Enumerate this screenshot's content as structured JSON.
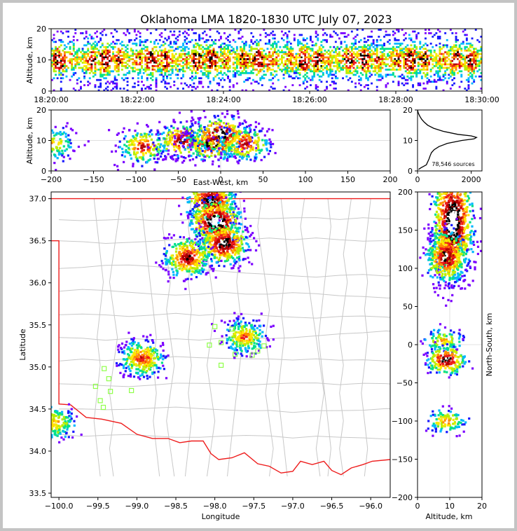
{
  "chart_data": {
    "type": "heatmap",
    "title": "Oklahoma LMA 1820-1830 UTC July 07, 2023",
    "colors": {
      "density_scale": [
        "#7b00ff",
        "#1a1aff",
        "#00b7ff",
        "#00e08a",
        "#b8ee00",
        "#ffe600",
        "#ff8c00",
        "#ee1c1c",
        "#b30000",
        "#000000",
        "#ffffff"
      ],
      "state_border": "#ee1c1c",
      "county_lines": "#c8c8c8",
      "station_markers": "#8fff4a"
    },
    "panels": {
      "time_altitude": {
        "ylabel": "Altitude, km",
        "ylim": [
          0,
          20
        ],
        "yticks": [
          "0",
          "10",
          "20"
        ],
        "xticks": [
          "18:20:00",
          "18:22:00",
          "18:24:00",
          "18:26:00",
          "18:28:00",
          "18:30:00"
        ],
        "xlim_minutes": [
          0,
          10
        ]
      },
      "east_west_altitude": {
        "xlabel": "East-West, km",
        "ylabel": "Altitude, km",
        "xlim": [
          -200,
          200
        ],
        "ylim": [
          0,
          20
        ],
        "xticks": [
          "−200",
          "−150",
          "−100",
          "−50",
          "0",
          "50",
          "100",
          "150",
          "200"
        ],
        "yticks": [
          "0",
          "10",
          "20"
        ],
        "grid": true,
        "clusters": [
          {
            "x": -196,
            "alt": 9,
            "strength": 0.55
          },
          {
            "x": -91,
            "alt": 8,
            "strength": 0.75
          },
          {
            "x": -45,
            "alt": 10,
            "strength": 0.85
          },
          {
            "x": -10,
            "alt": 9,
            "strength": 0.95
          },
          {
            "x": 0,
            "alt": 12,
            "strength": 1.0
          },
          {
            "x": 28,
            "alt": 9,
            "strength": 0.8
          }
        ]
      },
      "altitude_histogram": {
        "annotation": "78,546 sources",
        "xlim": [
          0,
          2400
        ],
        "xticks": [
          "0",
          "2000"
        ],
        "ylim": [
          0,
          20
        ],
        "yticks": [
          "0",
          "10",
          "20"
        ],
        "profile": [
          [
            0.5,
            40
          ],
          [
            1,
            120
          ],
          [
            2,
            330
          ],
          [
            3,
            380
          ],
          [
            4,
            430
          ],
          [
            5,
            470
          ],
          [
            6,
            520
          ],
          [
            7,
            620
          ],
          [
            8,
            800
          ],
          [
            9,
            1100
          ],
          [
            10,
            1650
          ],
          [
            10.5,
            2100
          ],
          [
            11,
            2200
          ],
          [
            11.5,
            2000
          ],
          [
            12,
            1500
          ],
          [
            13,
            950
          ],
          [
            14,
            600
          ],
          [
            15,
            380
          ],
          [
            16,
            250
          ],
          [
            17,
            150
          ],
          [
            18,
            80
          ],
          [
            19,
            30
          ],
          [
            20,
            0
          ]
        ]
      },
      "plan_view": {
        "xlabel": "Longitude",
        "ylabel": "Latitude",
        "xlim": [
          -100.1,
          -95.75
        ],
        "ylim": [
          33.45,
          37.08
        ],
        "xticks": [
          "−100.0",
          "−99.5",
          "−99.0",
          "−98.5",
          "−98.0",
          "−97.5",
          "−97.0",
          "−96.5",
          "−96.0"
        ],
        "yticks": [
          "33.5",
          "34.0",
          "34.5",
          "35.0",
          "35.5",
          "36.0",
          "36.5",
          "37.0"
        ],
        "storms": [
          {
            "lon": -98.05,
            "lat": 36.97,
            "strength": 0.9
          },
          {
            "lon": -97.98,
            "lat": 36.72,
            "strength": 1.0
          },
          {
            "lon": -97.88,
            "lat": 36.47,
            "strength": 0.9
          },
          {
            "lon": -98.35,
            "lat": 36.3,
            "strength": 0.8
          },
          {
            "lon": -98.93,
            "lat": 35.1,
            "strength": 0.7
          },
          {
            "lon": -97.62,
            "lat": 35.36,
            "strength": 0.6
          },
          {
            "lon": -100.05,
            "lat": 34.34,
            "strength": 0.55
          }
        ],
        "stations": [
          [
            -99.42,
            34.98
          ],
          [
            -99.36,
            34.86
          ],
          [
            -99.53,
            34.77
          ],
          [
            -99.34,
            34.71
          ],
          [
            -99.47,
            34.6
          ],
          [
            -99.43,
            34.52
          ],
          [
            -99.07,
            34.72
          ],
          [
            -98.0,
            35.48
          ],
          [
            -98.07,
            35.26
          ],
          [
            -97.92,
            35.29
          ],
          [
            -97.78,
            35.45
          ],
          [
            -97.68,
            35.27
          ],
          [
            -97.74,
            35.15
          ],
          [
            -97.52,
            35.14
          ],
          [
            -97.45,
            35.19
          ],
          [
            -97.37,
            35.25
          ],
          [
            -97.92,
            35.02
          ]
        ]
      },
      "north_south_altitude": {
        "xlabel": "Altitude, km",
        "ylabel": "North-South, km",
        "xlim": [
          0,
          20
        ],
        "ylim": [
          -200,
          200
        ],
        "xticks": [
          "0",
          "10",
          "20"
        ],
        "yticks": [
          "200",
          "150",
          "100",
          "50",
          "0",
          "−50",
          "−100",
          "−150",
          "−200"
        ],
        "grid": true
      }
    }
  }
}
